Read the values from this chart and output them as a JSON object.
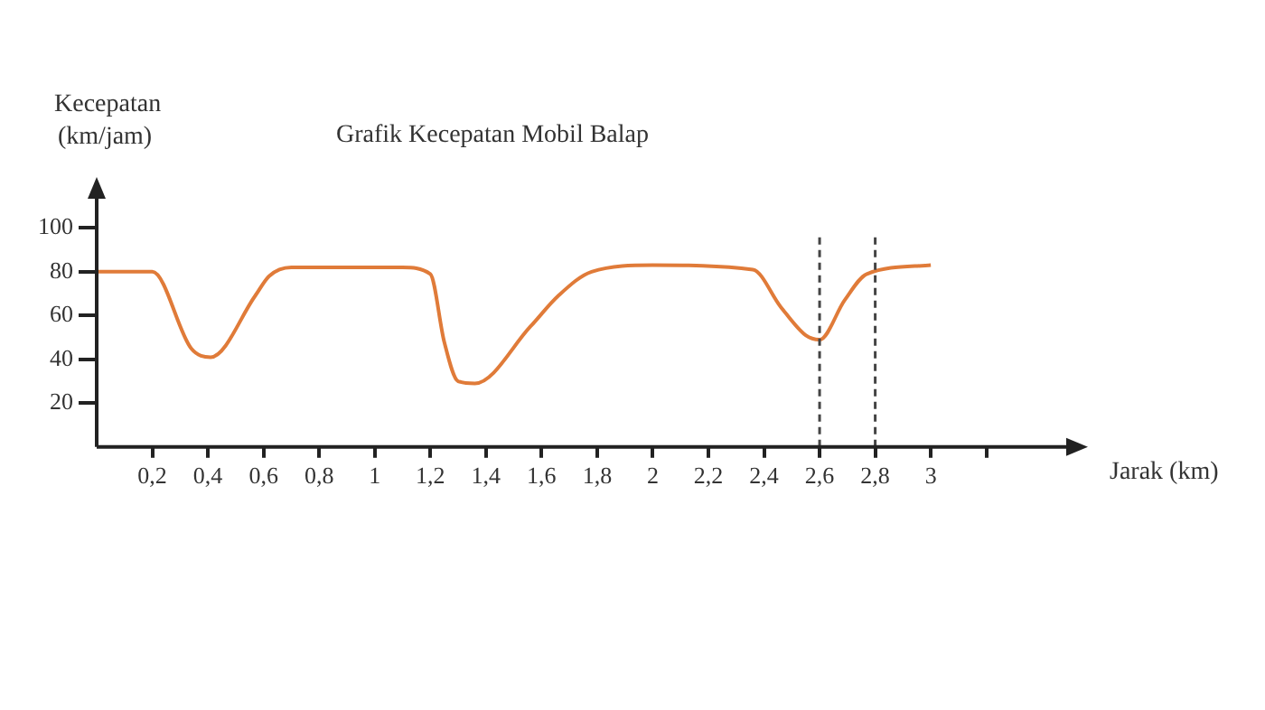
{
  "chart_data": {
    "type": "line",
    "title": "Grafik Kecepatan Mobil Balap",
    "xlabel": "Jarak (km)",
    "ylabel": "Kecepatan (km/jam)",
    "series": [
      {
        "color": "#e07b39",
        "x": [
          0,
          0.2,
          0.34,
          0.41,
          0.57,
          0.62,
          0.7,
          1.1,
          1.2,
          1.25,
          1.3,
          1.36,
          1.56,
          1.66,
          1.78,
          2.0,
          2.36,
          2.46,
          2.55,
          2.6,
          2.69,
          2.77,
          3.0
        ],
        "values": [
          80,
          80,
          45,
          41,
          69,
          78,
          82,
          82,
          79,
          48,
          30,
          29,
          55,
          69,
          80,
          83,
          81,
          64,
          51,
          49,
          67,
          79,
          83
        ]
      }
    ],
    "xlim": [
      0,
      3.5
    ],
    "xticks": [
      {
        "value": 0.2,
        "label": "0,2"
      },
      {
        "value": 0.4,
        "label": "0,4"
      },
      {
        "value": 0.6,
        "label": "0,6"
      },
      {
        "value": 0.8,
        "label": "0,8"
      },
      1,
      {
        "value": 1.2,
        "label": "1,2"
      },
      {
        "value": 1.4,
        "label": "1,4"
      },
      {
        "value": 1.6,
        "label": "1,6"
      },
      {
        "value": 1.8,
        "label": "1,8"
      },
      2,
      {
        "value": 2.2,
        "label": "2,2"
      },
      {
        "value": 2.4,
        "label": "2,4"
      },
      {
        "value": 2.6,
        "label": "2,6"
      },
      {
        "value": 2.8,
        "label": "2,8"
      },
      3,
      {
        "value": 3.2,
        "label": null
      }
    ],
    "ylim": [
      0,
      115
    ],
    "yticks": [
      20,
      40,
      60,
      80,
      100
    ],
    "ref_lines": [
      {
        "axis": "x",
        "value": 2.6,
        "color": "#444444",
        "line_style": "dashed"
      },
      {
        "axis": "x",
        "value": 2.8,
        "color": "#444444",
        "line_style": "dashed"
      }
    ],
    "grid": false,
    "legend": false,
    "marker": "none",
    "line_style": "solid"
  }
}
